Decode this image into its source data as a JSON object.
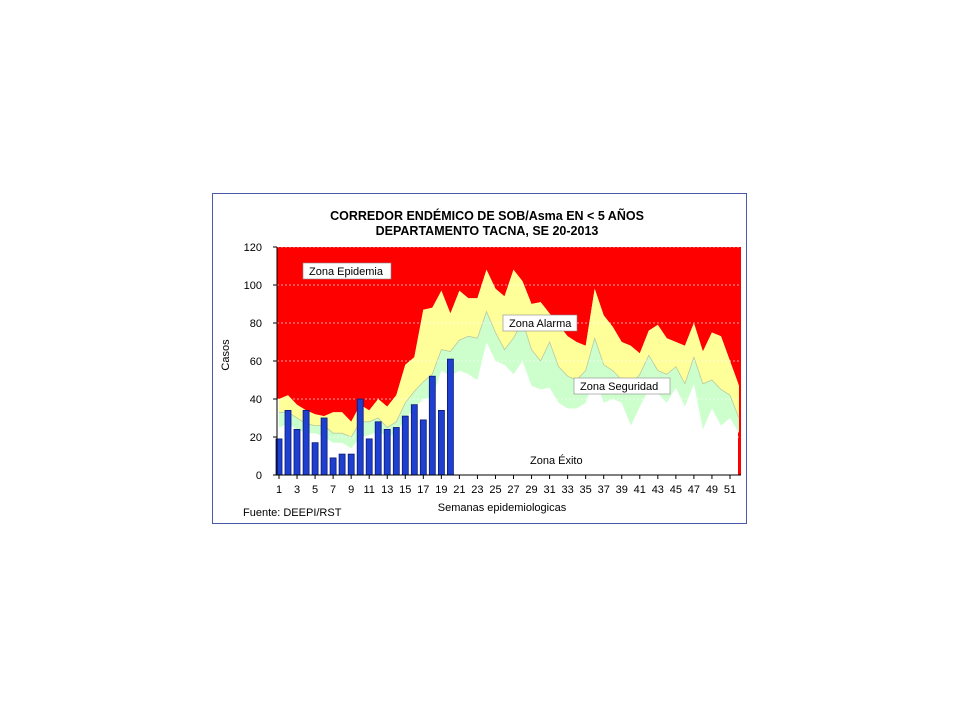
{
  "chart_data": {
    "type": "area",
    "title": "CORREDOR ENDÉMICO DE SOB/Asma EN < 5 AÑOS",
    "subtitle": "DEPARTAMENTO TACNA,  SE  20-2013",
    "ylabel": "Casos",
    "xlabel": "Semanas epidemiologicas",
    "source": "Fuente:  DEEPI/RST",
    "ylim": [
      0,
      120
    ],
    "yticks": [
      0,
      20,
      40,
      60,
      80,
      100,
      120
    ],
    "xlim": [
      1,
      52
    ],
    "xtick_labels": [
      "1",
      "3",
      "5",
      "7",
      "9",
      "11",
      "13",
      "15",
      "17",
      "19",
      "21",
      "23",
      "25",
      "27",
      "29",
      "31",
      "33",
      "35",
      "37",
      "39",
      "41",
      "43",
      "45",
      "47",
      "49",
      "51"
    ],
    "grid": true,
    "zones": {
      "epidemia": "Zona Epidemia",
      "alarma": "Zona Alarma",
      "seguridad": "Zona Seguridad",
      "exito": "Zona Éxito"
    },
    "colors": {
      "epidemia": "#ff0000",
      "alarma": "#ffff99",
      "seguridad": "#ccffcc",
      "exito": "#ffffff",
      "bars": "#1f3fd0",
      "frame": "#4a5aa8"
    },
    "weeks": [
      1,
      2,
      3,
      4,
      5,
      6,
      7,
      8,
      9,
      10,
      11,
      12,
      13,
      14,
      15,
      16,
      17,
      18,
      19,
      20,
      21,
      22,
      23,
      24,
      25,
      26,
      27,
      28,
      29,
      30,
      31,
      32,
      33,
      34,
      35,
      36,
      37,
      38,
      39,
      40,
      41,
      42,
      43,
      44,
      45,
      46,
      47,
      48,
      49,
      50,
      51,
      52
    ],
    "percentile_75": [
      40,
      42,
      37,
      34,
      32,
      31,
      33,
      33,
      28,
      37,
      34,
      40,
      36,
      42,
      58,
      62,
      87,
      88,
      97,
      85,
      97,
      93,
      93,
      108,
      98,
      94,
      108,
      102,
      90,
      91,
      85,
      79,
      73,
      70,
      68,
      98,
      84,
      78,
      70,
      68,
      64,
      76,
      79,
      72,
      70,
      68,
      80,
      65,
      75,
      73,
      60,
      47
    ],
    "median": [
      33,
      33,
      30,
      27,
      26,
      26,
      22,
      22,
      20,
      28,
      28,
      30,
      25,
      28,
      38,
      44,
      49,
      53,
      66,
      65,
      71,
      73,
      72,
      86,
      75,
      66,
      72,
      81,
      66,
      60,
      70,
      57,
      52,
      50,
      55,
      72,
      58,
      55,
      50,
      47,
      53,
      63,
      55,
      53,
      57,
      48,
      62,
      48,
      50,
      45,
      42,
      30
    ],
    "percentile_25": [
      25,
      27,
      24,
      22,
      22,
      20,
      17,
      17,
      14,
      20,
      21,
      23,
      20,
      22,
      30,
      35,
      40,
      41,
      55,
      52,
      55,
      53,
      50,
      70,
      60,
      58,
      53,
      60,
      47,
      45,
      46,
      38,
      35,
      35,
      38,
      52,
      38,
      40,
      38,
      26,
      36,
      45,
      43,
      38,
      46,
      36,
      48,
      24,
      35,
      26,
      30,
      22
    ],
    "series": [
      {
        "name": "2013",
        "values": [
          19,
          34,
          24,
          34,
          17,
          30,
          9,
          11,
          11,
          40,
          19,
          28,
          24,
          25,
          31,
          37,
          29,
          52,
          34,
          61
        ]
      }
    ]
  }
}
